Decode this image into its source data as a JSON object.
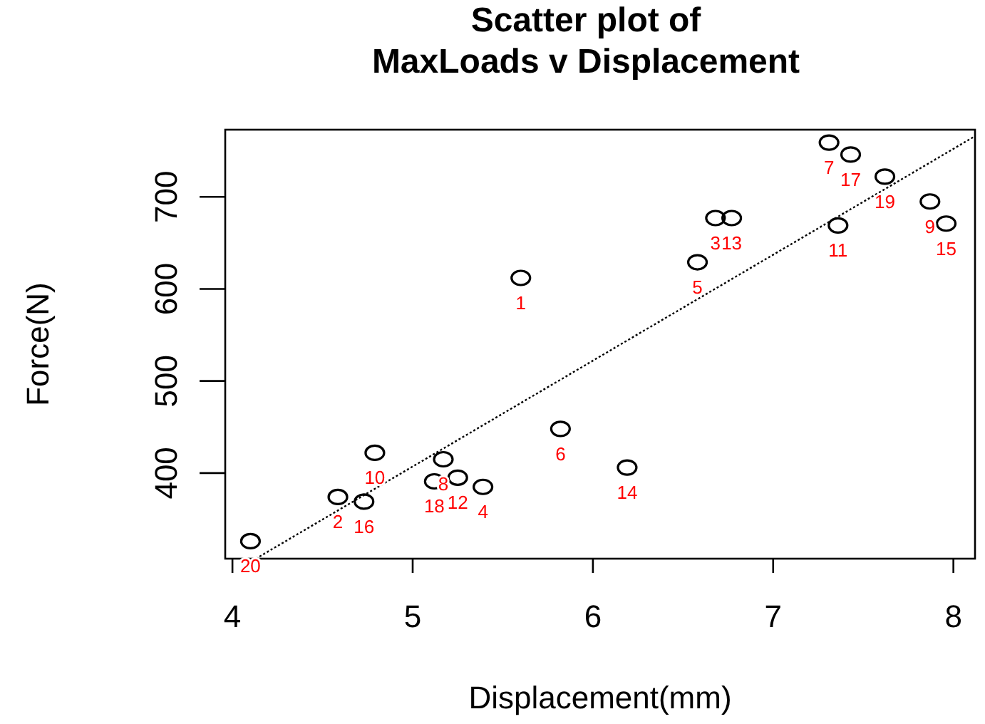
{
  "chart_data": {
    "type": "scatter",
    "title": "Scatter plot of\nMaxLoads v Displacement",
    "xlabel": "Displacement(mm)",
    "ylabel": "Force(N)",
    "xlim": [
      3.96,
      8.12
    ],
    "ylim": [
      307,
      773
    ],
    "xticks": [
      4,
      5,
      6,
      7,
      8
    ],
    "yticks": [
      400,
      500,
      600,
      700
    ],
    "grid": false,
    "marker": "circle",
    "series": [
      {
        "color": "#000000",
        "x": [
          5.6,
          4.585,
          6.68,
          5.39,
          6.58,
          5.82,
          7.31,
          5.17,
          7.87,
          4.79,
          7.36,
          5.25,
          6.77,
          6.19,
          7.96,
          4.73,
          7.43,
          5.12,
          7.62,
          4.1
        ],
        "values": [
          612,
          374,
          677,
          385,
          629,
          448,
          759,
          415,
          695,
          422,
          669,
          395,
          677,
          406,
          671,
          369,
          746,
          391,
          722,
          326
        ]
      },
      {
        "type": "line",
        "color": "#000000",
        "line_style": "dotted",
        "marker": "none",
        "x": [
          4.13,
          8.12
        ],
        "values": [
          307,
          766
        ]
      }
    ],
    "annotations": [
      {
        "text": "1",
        "x": 5.6,
        "y": 612
      },
      {
        "text": "2",
        "x": 4.585,
        "y": 374
      },
      {
        "text": "3",
        "x": 6.68,
        "y": 677
      },
      {
        "text": "4",
        "x": 5.39,
        "y": 385
      },
      {
        "text": "5",
        "x": 6.58,
        "y": 629
      },
      {
        "text": "6",
        "x": 5.82,
        "y": 448
      },
      {
        "text": "7",
        "x": 7.31,
        "y": 759
      },
      {
        "text": "8",
        "x": 5.17,
        "y": 415
      },
      {
        "text": "9",
        "x": 7.87,
        "y": 695
      },
      {
        "text": "10",
        "x": 4.79,
        "y": 422
      },
      {
        "text": "11",
        "x": 7.36,
        "y": 669
      },
      {
        "text": "12",
        "x": 5.25,
        "y": 395
      },
      {
        "text": "13",
        "x": 6.77,
        "y": 677
      },
      {
        "text": "14",
        "x": 6.19,
        "y": 406
      },
      {
        "text": "15",
        "x": 7.96,
        "y": 671
      },
      {
        "text": "16",
        "x": 4.73,
        "y": 369
      },
      {
        "text": "17",
        "x": 7.43,
        "y": 746
      },
      {
        "text": "18",
        "x": 5.12,
        "y": 391
      },
      {
        "text": "19",
        "x": 7.62,
        "y": 722
      },
      {
        "text": "20",
        "x": 4.1,
        "y": 326
      }
    ]
  }
}
